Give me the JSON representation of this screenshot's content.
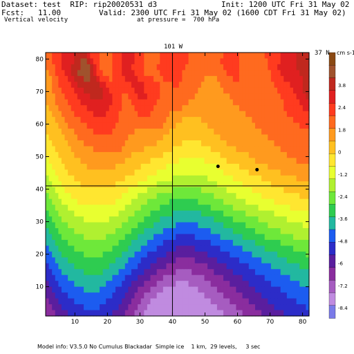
{
  "header": {
    "dataset": "Dataset: test  RIP: rip20020531 d3",
    "init": "Init: 1200 UTC Fri 31 May 02",
    "fcst": "Fcst:   11.00",
    "valid": "Valid: 2300 UTC Fri 31 May 02 (1600 CDT Fri 31 May 02)",
    "field": "Vertical velocity",
    "pressure": "at pressure =  700 hPa"
  },
  "footer": {
    "model_info": "Model info: V3.5.0 No Cumulus Blackadar  Simple ice    1 km,  29 levels,     3 sec"
  },
  "chart_data": {
    "type": "heatmap",
    "title": "Vertical velocity at pressure = 700 hPa",
    "xlim": [
      1,
      82
    ],
    "ylim": [
      1,
      82
    ],
    "x_ticks": [
      10,
      20,
      30,
      40,
      50,
      60,
      70,
      80
    ],
    "y_ticks": [
      10,
      20,
      30,
      40,
      50,
      60,
      70,
      80
    ],
    "top_label": "101 W",
    "right_label": "37 N",
    "cross_lines": {
      "x": 40,
      "y": 41
    },
    "markers": [
      {
        "x": 54,
        "y": 47
      },
      {
        "x": 66,
        "y": 46
      }
    ],
    "colorbar": {
      "units": "cm s-1",
      "levels": [
        4.2,
        3.6,
        3.0,
        2.4,
        1.8,
        1.2,
        0.6,
        0,
        -0.6,
        -1.2,
        -1.8,
        -2.4,
        -3.0,
        -3.6,
        -4.2,
        -4.8,
        -5.4,
        -6.0,
        -6.6
      ],
      "tick_labels": [
        "3.8",
        "2.4",
        "1.8",
        "0",
        "-1.2",
        "-2.4",
        "-3.6",
        "-4.8",
        "-6",
        "-7.2",
        "-8.4"
      ],
      "colors": [
        "#8b4a14",
        "#a0522d",
        "#c0281e",
        "#e02020",
        "#ff3b1f",
        "#ff6a1f",
        "#ff9a1e",
        "#ffc020",
        "#ffe630",
        "#e8ff30",
        "#b0f030",
        "#6ee83a",
        "#2ecc50",
        "#22b8a0",
        "#1c5cf0",
        "#2c2cc8",
        "#5a1e9e",
        "#8a2d9e",
        "#a65cc0",
        "#c08be0",
        "#7a7ae8"
      ]
    },
    "grid_rows": [
      "FFEEEDDDDCCCCDEEEFFFFEEEDDDDEEEFFFFFEEEEEEEEEFFFFFFFFFFFEEEEEFFFFFFFFEEEEEDDDDDCCCC",
      "FFEEEDDDDCCBBCDEEFFFFEEEDDDDEEEFFFFFEEEEEEEEEFFFFFFFFFFEEEEEEFFFFFFFFFEEEEDDDDDCCCC",
      "FFFEEDDDCCCBBBCDEFFFFEEEDDDEEEEFFFFEEEEEEEEEFFFFFFFFFFFFEEEEEFFFFFFFFFEEEDDDDDDCCCC",
      "GFFEEEDDCCBBBBCDEEFFFEEEDDDDEEEFFFFFEEEEEEEFFFFFFFFFFFFFFEEEEFFFFFFFFFFEEEDDDDDDCCC",
      "GGFFEEEDDCCCBBCCDEEEFEEEEDDDDEEEEEFFFEEEEEEFFFFFFFGGGGFFFFFEEFFFFFFFFFFEEEEDDDDDDCC",
      "GGFFEEEEDDCCCCCCCDDEEEEEEEEDDDDEEEEEFFFFEEFFFFFFFGGGGGGFFFFFFFFFFFFFFFFFEEEEEDDDDCC",
      "GGFFFEEEEDDDCCCCCCDDEEEEEEEEDDDEEEEEFFFFFFFFFFFFGGGGGGGGFFFFFFFFFFFFFFFFFEEEEEDDDCC",
      "GGGFFFEEEEDDDDCCCCDDDEEEFFEEEDDDEEEEFFFFFFFFFFFGGGGGGGGGGGFFFFFFFFFFFFFFFFEEEEEDDDC",
      "GGGFFFFEEEEDDDDDDDDDDEEEFFFEEEEEEEEFFFFFFFFFFGGGGGGGGGGGGGGFFFFFFFFFFFFFFFFEEEEEDDD",
      "HGGGFFFFEEEEEDDDDDDDEEEEFFFFEEEEEEFFFFFFFFFGGGGGGGGGGGGGGGGGGFFFFFFFFFFFFFFEEEEEEDD",
      "HHGGGFFFFEEEEEEDDDDEEEEFFFFFFEEEEFFFFFFGGGGGGGGGGGGGGGGGGGGGGGGFFFFFFFFFFFFFEEEEEEE",
      "HHHGGGFFFFFEEEEEEEEEEEEFFFFFFFFFFFFFFFGGGGGHHHHHHGGGGGGGGGGGGGGGGFFFFFFFFFFFFFEEEEE",
      "HHHHGGGFFFFFFEEEEEEEEEFFFFFFFFFFFFFFFGGGGHHHHHHHHHHGGGGGGGGGGGGGGGFFFFFFFFFFFFFFEEE",
      "HHHHHGGGGFFFFFFEEEEEEFFFFFFFGGGGGGGGGGGHHHHHHHHHHHHHHGGGGGGGGGGGGGGGFFFFFFFFFFFFFFF",
      "IHHHHHGGGGFFFFFFFFFFFFFFFFGGGGGGGGGGGHHHHHHHHHHHHHHHHHHGGGGGGGGGGGGGGGFFFFFFFFFFFFF",
      "IIHHHHHGGGGGFFFFFFFFFFFFFGGGGGGGGGGHHHHHHHHIIIIIIHHHHHHHHGGGGGGGGGGGGGGGFFFFFFFFFFF",
      "IIIHHHHHGGGGGGGFFFFFFFFFGGGGGGGHHHHHHHHHIIIIIIIIIIIIHHHHHHHHGGGGGGGGGGGGGGFFFFFFFFF",
      "IIIIHHHHHGGGGGGGGGGGGGGGGGGHHHHHHHHHHIIIIIIIIIIIIIIIIIIHHHHHHHHHGGGGGGGGGGGGFFFFFFF",
      "JIIIIHHHHHHGGGGGGGGGGGGGGHHHHHHHHIIIIIIIIIJJJJJJJJIIIIIIIHHHHHHHHHGGGGGGGGGGGGGFFFF",
      "JJIIIIHHHHHHHGGGGGGGGGHHHHHHHHIIIIIIIIJJJJJJJJJJJJJJJJIIIIIIIHHHHHHHHHGGGGGGGGGGGGG",
      "JJJIIIIHHHHHHHHHHHHHHHHHHHHHIIIIIIIJJJJJJJJJJJJJJJJJJJJJIIIIIIIIHHHHHHHHHHGGGGGGGGG",
      "KJJJIIIIIHHHHHHHHHHHHHHHHIIIIIIIJJJJJJJJKKKKKKKKKKKJJJJJJJJIIIIIIIIIHHHHHHHHHHHGGGG",
      "KKJJJIIIIIIHHHHHHHHHHHIIIIIIIJJJJJJKKKKKKKKKKKKKKKKKKKJJJJJJJJIIIIIIIIIHHHHHHHHHHHH",
      "KKKJJJIIIIIIIIIIIIIIIIIIIIJJJJJJKKKKKKKKLLLLLLLLLKKKKKKKKJJJJJJJJIIIIIIIIIIHHHHHHHH",
      "LKKKJJJJIIIIIIIIIIIIIIIIJJJJJKKKKKKLLLLLLLLLLLLLLLLLLKKKKKKKJJJJJJJJIIIIIIIIIIIIHHH",
      "LLKKKJJJJJIIIIIIIIIIIIJJJJJKKKKKLLLLLLLMMMMMMMMMLLLLLLLLKKKKKKKJJJJJJJJJIIIIIIIIIII",
      "LLLKKKKJJJJJJJJJJJJJJJJJJKKKKKLLLLLLMMMMMMMMMMMMMMMMLLLLLLLKKKKKKKKJJJJJJJJJJIIIIII",
      "MLLLKKKKKJJJJJJJJJJJJJJKKKKKLLLLLMMMMMMMNNNNNNNNNMMMMMMMLLLLLLLKKKKKKKKKJJJJJJJJJJJ",
      "MMLLLKKKKKKKJJJJJJJJKKKKKKLLLLLMMMMMNNNNNNNNNNNNNNNNNMMMMMMLLLLLLLLKKKKKKKKKJJJJJJJ",
      "MMMLLLLKKKKKKKKKKKKKKKKKLLLLLMMMMMNNNNNNNOOOOOOONNNNNNNNMMMMMMMLLLLLLLKKKKKKKKKKKJJ",
      "NMMMLLLLLKKKKKKKKKKKKKLLLLLMMMMNNNNNNOOOOOOOOOOOOOOONNNNNNNMMMMMMMLLLLLLLLKKKKKKKKK",
      "NNMMMLLLLLLLKKKKKKKLLLLLLMMMMNNNNNOOOOOOOPPPPPPOOOOOOOONNNNNNNMMMMMMMLLLLLLLLLKKKKK",
      "NNNMMMMLLLLLLLLLLLLLLLLMMMMNNNNNOOOOOPPPPPPPPPPPPPPPOOOOOOONNNNNNNMMMMMMMMLLLLLLLLL",
      "ONNNMMMMMLLLLLLLLLLLLMMMMMNNNNOOOOOPPPPPPQQQQQQPPPPPPPPOOOOOOONNNNNNNMMMMMMMMMLLLLL",
      "OONNNMMMMMMMLLLLLLMMMMMMNNNNOOOOPPPPPPQQQQQQQQQQQQQPPPPPPPOOOOOOONNNNNNNNMMMMMMMMML",
      "OOONNNNMMMMMMMMMMMMMMMNNNNOOOOPPPPPQQQQQQRRRRRRQQQQQQQPPPPPPPOOOOOOONNNNNNNNMMMMMMM",
      "POOONNNNNMMMMMMMMMMMNNNNNOOOOPPPPQQQQQRRRRRRRRRRRRRQQQQQQPPPPPPPOOOOOOONNNNNNNNNMMM",
      "PPOOONNNNNNNMMMMMMNNNNNOOOOPPPPQQQQRRRRRRSSSSSRRRRRRRQQQQQQPPPPPPPOOOOOOOONNNNNNNNN",
      "PPPOOOONNNNNNNNNNNNNNOOOOPPPPQQQQRRRRSSSSSSSSSSSSSRRRRRRQQQQQQPPPPPPPOOOOOOOONNNNNN",
      "QPPPOOOOONNNNNNNNNNOOOOOPPPQQQQRRRRSSSSSSTTTTSSSSSSSRRRRRRQQQQQQPPPPPPPOOOOOOOOONNN",
      "QQPPPOOOOOOONNNNNOOOOOPPPPQQQRRRRSSSSTTTTTTTTTTTSSSSSSRRRRRRQQQQQQPPPPPPPPOOOOOOOOO",
      "QQQPPPPOOOOOOOOOOOOOOPPPPQQQRRRSSSSTTTTTTTTTTTTTTTSSSSSSRRRRRRQQQQQQPPPPPPPPOOOOOOO",
      "RQQQPPPPPOOOOOOOOOOPPPPPQQQRRRSSSTTTTTTTTTTTTTTTTTTTSSSSSSRRRRRRQQQQQQPPPPPPPPPOOOO",
      "RRQQQPPPPPPPOOOOOPPPPPPQQQRRRSSSTTTTTTTTTTTTTTTTTTTTTTSSSSSSRRRRRRQQQQQQPPPPPPPPPPO",
      "RRRQQQQPPPPPPPPPPPPPPQQQQRRRSSSTTTTTTTTTTTTTTTTTTTTTTTTTSSSSSSRRRRRRQQQQQQQPPPPPPPP"
    ]
  }
}
